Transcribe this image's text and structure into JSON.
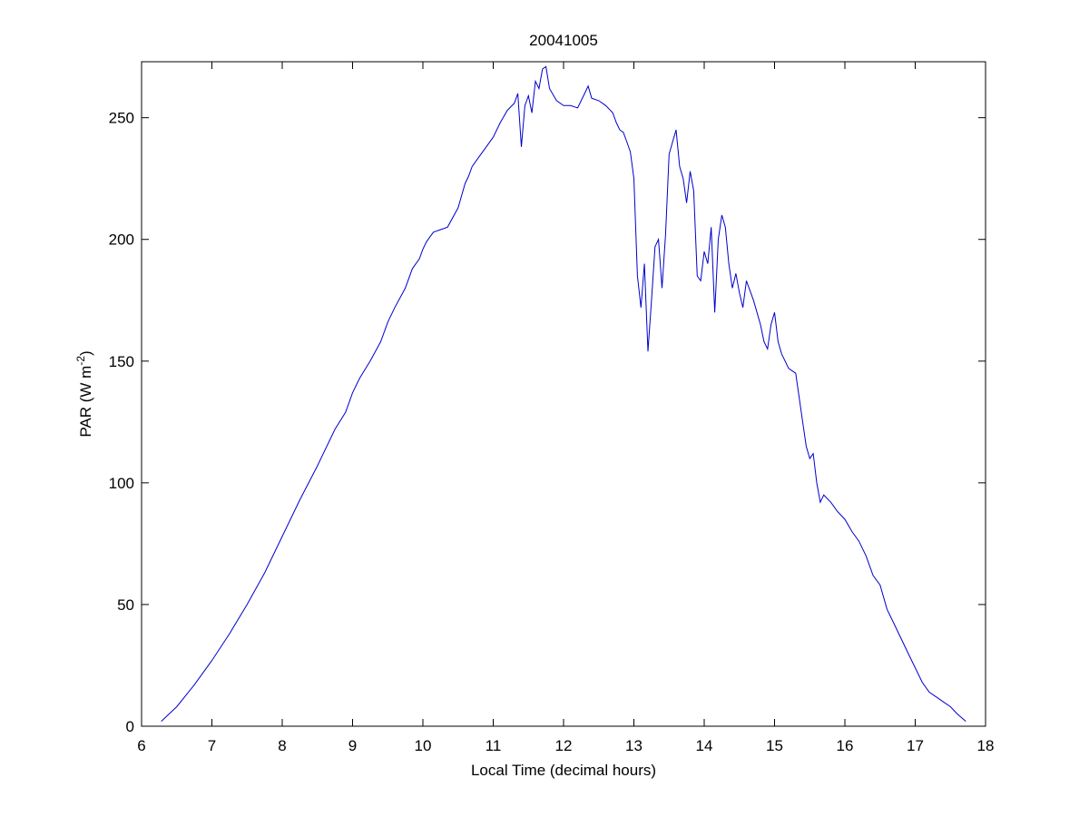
{
  "chart_data": {
    "type": "line",
    "title": "20041005",
    "xlabel": "Local Time (decimal hours)",
    "ylabel_main": "PAR (W m",
    "ylabel_sup": "-2",
    "ylabel_close": ")",
    "xlim": [
      6,
      18
    ],
    "ylim": [
      0,
      273
    ],
    "xticks": [
      6,
      7,
      8,
      9,
      10,
      11,
      12,
      13,
      14,
      15,
      16,
      17,
      18
    ],
    "yticks": [
      0,
      50,
      100,
      150,
      200,
      250
    ],
    "grid": false,
    "line_color": "#0000cc",
    "series": [
      {
        "x": [
          6.28,
          6.5,
          6.75,
          7.0,
          7.25,
          7.5,
          7.75,
          8.0,
          8.25,
          8.5,
          8.75,
          8.9,
          9.0,
          9.1,
          9.25,
          9.4,
          9.5,
          9.6,
          9.75,
          9.85,
          9.95,
          10.0,
          10.05,
          10.1,
          10.15,
          10.25,
          10.35,
          10.5,
          10.6,
          10.65,
          10.7,
          10.8,
          10.9,
          11.0,
          11.1,
          11.2,
          11.3,
          11.35,
          11.4,
          11.45,
          11.5,
          11.55,
          11.6,
          11.65,
          11.7,
          11.75,
          11.8,
          11.9,
          12.0,
          12.1,
          12.2,
          12.3,
          12.35,
          12.4,
          12.5,
          12.6,
          12.7,
          12.75,
          12.8,
          12.85,
          12.9,
          12.95,
          13.0,
          13.05,
          13.1,
          13.15,
          13.2,
          13.25,
          13.3,
          13.35,
          13.4,
          13.45,
          13.5,
          13.55,
          13.6,
          13.65,
          13.7,
          13.75,
          13.8,
          13.85,
          13.9,
          13.95,
          14.0,
          14.05,
          14.1,
          14.15,
          14.2,
          14.25,
          14.3,
          14.35,
          14.4,
          14.45,
          14.5,
          14.55,
          14.6,
          14.7,
          14.8,
          14.85,
          14.9,
          14.95,
          15.0,
          15.05,
          15.1,
          15.2,
          15.3,
          15.4,
          15.45,
          15.5,
          15.55,
          15.6,
          15.65,
          15.7,
          15.8,
          15.9,
          16.0,
          16.1,
          16.2,
          16.3,
          16.4,
          16.5,
          16.6,
          16.7,
          16.8,
          16.9,
          17.0,
          17.1,
          17.2,
          17.3,
          17.4,
          17.5,
          17.6,
          17.72
        ],
        "y": [
          2,
          8,
          17,
          27,
          38,
          50,
          63,
          78,
          93,
          107,
          122,
          129,
          137,
          143,
          150,
          158,
          166,
          172,
          180,
          188,
          192,
          196,
          199,
          201,
          203,
          204,
          205,
          213,
          223,
          226,
          230,
          234,
          238,
          242,
          248,
          253,
          256,
          260,
          238,
          255,
          259,
          252,
          265,
          262,
          270,
          271,
          262,
          257,
          255,
          255,
          254,
          260,
          263,
          258,
          257,
          255,
          252,
          248,
          245,
          244,
          240,
          236,
          225,
          185,
          172,
          190,
          154,
          175,
          197,
          200,
          180,
          202,
          235,
          240,
          245,
          230,
          225,
          215,
          228,
          220,
          185,
          183,
          195,
          190,
          205,
          170,
          200,
          210,
          205,
          190,
          180,
          186,
          178,
          172,
          183,
          175,
          165,
          158,
          155,
          165,
          170,
          158,
          153,
          147,
          145,
          125,
          115,
          110,
          112,
          100,
          92,
          95,
          92,
          88,
          85,
          80,
          76,
          70,
          62,
          58,
          48,
          42,
          36,
          30,
          24,
          18,
          14,
          12,
          10,
          8,
          5,
          2
        ]
      }
    ]
  }
}
